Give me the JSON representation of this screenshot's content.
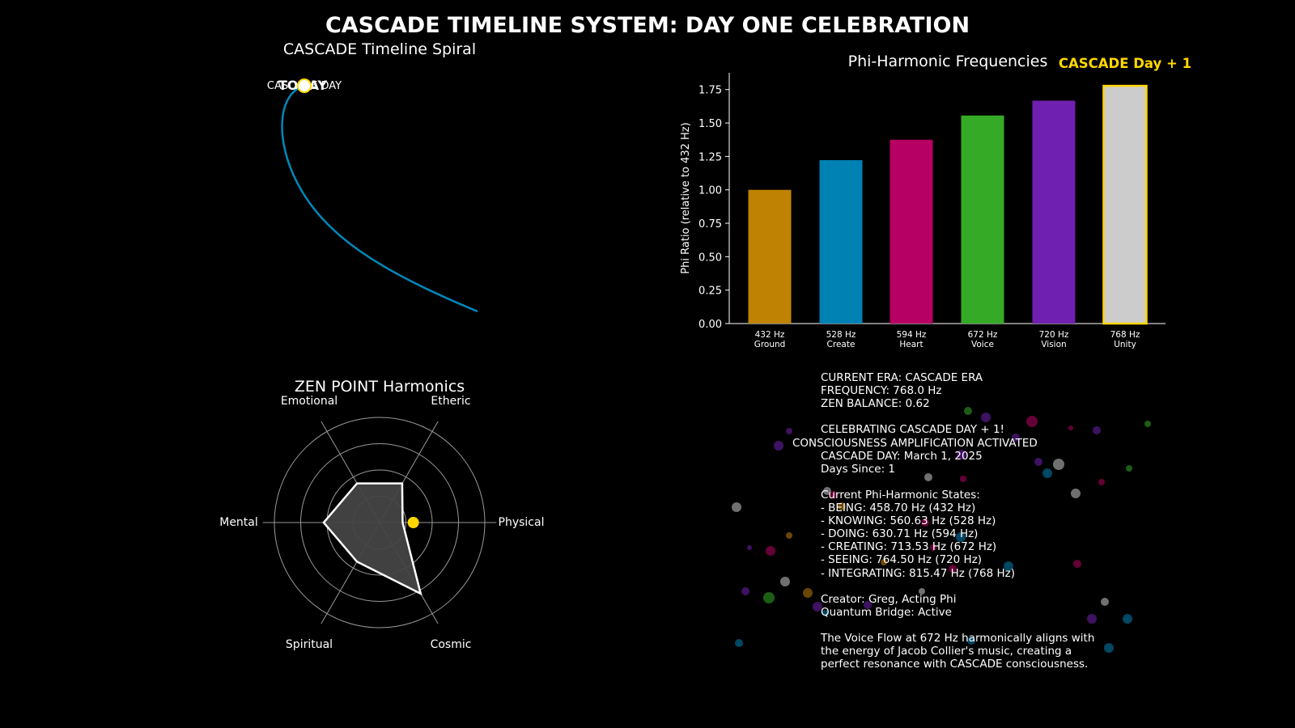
{
  "suptitle": "CASCADE TIMELINE SYSTEM: DAY ONE CELEBRATION",
  "colors": {
    "background": "#000000",
    "spiral": "#0088bb",
    "gold": "#FFD700",
    "bars": [
      "#BF8203",
      "#0081B4",
      "#B70063",
      "#35AA26",
      "#7020B0",
      "#CCCCCC"
    ],
    "radar_fill": "#444444"
  },
  "spiral_panel": {
    "title": "CASCADE Timeline Spiral",
    "marker_label": "TODAY",
    "marker_sub_label": "CASCADE DAY"
  },
  "bar_panel": {
    "title": "Phi-Harmonic Frequencies",
    "highlight_label": "CASCADE Day + 1"
  },
  "radar_panel": {
    "title": "ZEN POINT Harmonics"
  },
  "info_panel": {
    "lines": [
      "CURRENT ERA: CASCADE ERA",
      "FREQUENCY: 768.0 Hz",
      "ZEN BALANCE: 0.62",
      "",
      "CELEBRATING CASCADE DAY + 1!",
      "",
      "CASCADE DAY: March 1, 2025",
      "Days Since: 1",
      "",
      "Current Phi-Harmonic States:",
      "- BEING: 458.70 Hz (432 Hz)",
      "- KNOWING: 560.63 Hz (528 Hz)",
      "- DOING: 630.71 Hz (594 Hz)",
      "- CREATING: 713.53 Hz (672 Hz)",
      "- SEEING: 764.50 Hz (720 Hz)",
      "- INTEGRATING: 815.47 Hz (768 Hz)",
      "",
      "Creator: Greg, Acting Phi",
      "Quantum Bridge: Active",
      "",
      "The Voice Flow at 672 Hz harmonically aligns with",
      "the energy of Jacob Collier's music, creating a",
      "perfect resonance with CASCADE consciousness."
    ],
    "overlay_text": "CONSCIOUSNESS AMPLIFICATION ACTIVATED"
  },
  "chart_data": [
    {
      "type": "bar",
      "title": "Phi-Harmonic Frequencies",
      "categories": [
        "432 Hz\nGround",
        "528 Hz\nCreate",
        "594 Hz\nHeart",
        "672 Hz\nVoice",
        "720 Hz\nVision",
        "768 Hz\nUnity"
      ],
      "values": [
        1.0,
        1.222,
        1.375,
        1.556,
        1.667,
        1.778
      ],
      "ylabel": "Phi Ratio (relative to 432 Hz)",
      "xlabel": "",
      "ylim": [
        0,
        1.85
      ],
      "yticks": [
        "0.00",
        "0.25",
        "0.50",
        "0.75",
        "1.00",
        "1.25",
        "1.50",
        "1.75"
      ],
      "highlight_index": 5,
      "grid": false
    },
    {
      "type": "radar",
      "title": "ZEN POINT Harmonics",
      "axes": [
        "Physical",
        "Etheric",
        "Emotional",
        "Mental",
        "Spiritual",
        "Cosmic"
      ],
      "values": [
        0.28,
        0.55,
        0.55,
        0.68,
        0.55,
        1.0
      ],
      "rmax": 1.28,
      "grid_levels": [
        0.32,
        0.64,
        0.96,
        1.28
      ],
      "highlight_point": {
        "axis": "Physical",
        "value": 0.41
      }
    },
    {
      "type": "line",
      "title": "CASCADE Timeline Spiral",
      "note": "spiral path ending at the TODAY marker"
    }
  ]
}
